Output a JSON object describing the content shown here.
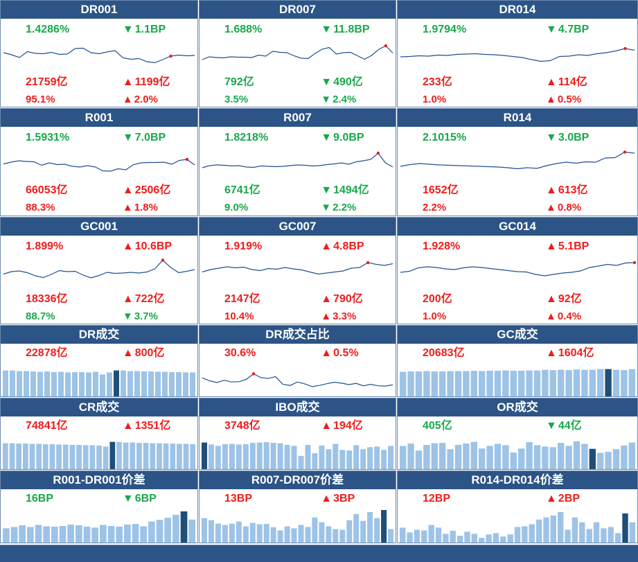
{
  "colors": {
    "header_bg": "#2c5486",
    "up": "#ef1c1c",
    "down": "#19a84a",
    "line": "#1f4f8f",
    "bar": "#9dc3e6",
    "bar_highlight": "#1f4e79",
    "marker": "#e61c1c"
  },
  "rows": [
    [
      {
        "title": "DR001",
        "type": "line",
        "stats": [
          {
            "text": "1.4286%",
            "color": "down"
          },
          {
            "arrow": "▼",
            "text": "1.1BP",
            "color": "down"
          },
          {
            "text": "21759亿",
            "color": "up"
          },
          {
            "arrow": "▲",
            "text": "1199亿",
            "color": "up"
          },
          {
            "text": "95.1%",
            "color": "up"
          },
          {
            "arrow": "▲",
            "text": "2.0%",
            "color": "up"
          }
        ],
        "chart_data": {
          "type": "line",
          "values": [
            58,
            52,
            44,
            61,
            56,
            55,
            59,
            53,
            54,
            70,
            71,
            58,
            55,
            60,
            64,
            43,
            39,
            41,
            32,
            29,
            38,
            48,
            51,
            49,
            50
          ],
          "marker_index": 21
        }
      },
      {
        "title": "DR007",
        "type": "line",
        "stats": [
          {
            "text": "1.688%",
            "color": "down"
          },
          {
            "arrow": "▼",
            "text": "11.8BP",
            "color": "down"
          },
          {
            "text": "792亿",
            "color": "down"
          },
          {
            "arrow": "▼",
            "text": "490亿",
            "color": "down"
          },
          {
            "text": "3.5%",
            "color": "down"
          },
          {
            "arrow": "▼",
            "text": "2.4%",
            "color": "down"
          }
        ],
        "chart_data": {
          "type": "line",
          "values": [
            38,
            46,
            44,
            43,
            46,
            45,
            45,
            44,
            51,
            48,
            62,
            59,
            58,
            49,
            42,
            41,
            56,
            68,
            73,
            54,
            58,
            59,
            49,
            39,
            50,
            67,
            78,
            57
          ],
          "marker_index": 26
        }
      },
      {
        "title": "DR014",
        "type": "line",
        "stats": [
          {
            "text": "1.9794%",
            "color": "down"
          },
          {
            "arrow": "▼",
            "text": "4.7BP",
            "color": "down"
          },
          {
            "text": "233亿",
            "color": "up"
          },
          {
            "arrow": "▲",
            "text": "114亿",
            "color": "up"
          },
          {
            "text": "1.0%",
            "color": "up"
          },
          {
            "arrow": "▲",
            "text": "0.5%",
            "color": "up"
          }
        ],
        "chart_data": {
          "type": "line",
          "values": [
            46,
            47,
            49,
            48,
            51,
            50,
            53,
            54,
            55,
            53,
            52,
            50,
            47,
            44,
            38,
            33,
            35,
            47,
            48,
            52,
            50,
            55,
            58,
            63,
            70,
            65
          ],
          "marker_index": 24
        }
      }
    ],
    [
      {
        "title": "R001",
        "type": "line",
        "stats": [
          {
            "text": "1.5931%",
            "color": "down"
          },
          {
            "arrow": "▼",
            "text": "7.0BP",
            "color": "down"
          },
          {
            "text": "66053亿",
            "color": "up"
          },
          {
            "arrow": "▲",
            "text": "2506亿",
            "color": "up"
          },
          {
            "text": "88.3%",
            "color": "up"
          },
          {
            "arrow": "▲",
            "text": "1.8%",
            "color": "up"
          }
        ],
        "chart_data": {
          "type": "line",
          "values": [
            49,
            54,
            58,
            56,
            55,
            45,
            52,
            47,
            48,
            42,
            40,
            44,
            40,
            29,
            28,
            35,
            32,
            47,
            52,
            53,
            53,
            54,
            48,
            59,
            62,
            46
          ],
          "marker_index": 24
        }
      },
      {
        "title": "R007",
        "type": "line",
        "stats": [
          {
            "text": "1.8218%",
            "color": "down"
          },
          {
            "arrow": "▼",
            "text": "9.0BP",
            "color": "down"
          },
          {
            "text": "6741亿",
            "color": "down"
          },
          {
            "arrow": "▼",
            "text": "1494亿",
            "color": "down"
          },
          {
            "text": "9.0%",
            "color": "down"
          },
          {
            "arrow": "▼",
            "text": "2.2%",
            "color": "down"
          }
        ],
        "chart_data": {
          "type": "line",
          "values": [
            38,
            44,
            46,
            45,
            43,
            44,
            40,
            39,
            43,
            42,
            41,
            42,
            44,
            46,
            45,
            43,
            44,
            47,
            49,
            52,
            48,
            55,
            58,
            62,
            80,
            52,
            40
          ],
          "marker_index": 24
        }
      },
      {
        "title": "R014",
        "type": "line",
        "stats": [
          {
            "text": "2.1015%",
            "color": "down"
          },
          {
            "arrow": "▼",
            "text": "3.0BP",
            "color": "down"
          },
          {
            "text": "1652亿",
            "color": "up"
          },
          {
            "arrow": "▲",
            "text": "613亿",
            "color": "up"
          },
          {
            "text": "2.2%",
            "color": "up"
          },
          {
            "arrow": "▲",
            "text": "0.8%",
            "color": "up"
          }
        ],
        "chart_data": {
          "type": "line",
          "values": [
            42,
            47,
            50,
            48,
            46,
            45,
            44,
            43,
            42,
            41,
            40,
            38,
            35,
            38,
            36,
            44,
            50,
            54,
            51,
            55,
            54,
            66,
            67,
            83,
            80
          ],
          "marker_index": 23
        }
      }
    ],
    [
      {
        "title": "GC001",
        "type": "line",
        "stats": [
          {
            "text": "1.899%",
            "color": "up"
          },
          {
            "arrow": "▲",
            "text": "10.6BP",
            "color": "up"
          },
          {
            "text": "18336亿",
            "color": "up"
          },
          {
            "arrow": "▲",
            "text": "722亿",
            "color": "up"
          },
          {
            "text": "88.7%",
            "color": "down"
          },
          {
            "arrow": "▼",
            "text": "3.7%",
            "color": "down"
          }
        ],
        "chart_data": {
          "type": "line",
          "values": [
            45,
            52,
            54,
            49,
            40,
            35,
            44,
            55,
            52,
            53,
            42,
            34,
            41,
            50,
            47,
            48,
            50,
            48,
            51,
            60,
            85,
            64,
            49,
            53,
            58
          ],
          "marker_index": 20
        }
      },
      {
        "title": "GC007",
        "type": "line",
        "stats": [
          {
            "text": "1.919%",
            "color": "up"
          },
          {
            "arrow": "▲",
            "text": "4.8BP",
            "color": "up"
          },
          {
            "text": "2147亿",
            "color": "up"
          },
          {
            "arrow": "▲",
            "text": "790亿",
            "color": "up"
          },
          {
            "text": "10.4%",
            "color": "up"
          },
          {
            "arrow": "▲",
            "text": "3.3%",
            "color": "up"
          }
        ],
        "chart_data": {
          "type": "line",
          "values": [
            51,
            58,
            62,
            66,
            63,
            65,
            58,
            55,
            61,
            59,
            64,
            60,
            57,
            51,
            45,
            48,
            51,
            54,
            62,
            64,
            78,
            73,
            70,
            75
          ],
          "marker_index": 20
        }
      },
      {
        "title": "GC014",
        "type": "line",
        "stats": [
          {
            "text": "1.928%",
            "color": "up"
          },
          {
            "arrow": "▲",
            "text": "5.1BP",
            "color": "up"
          },
          {
            "text": "200亿",
            "color": "up"
          },
          {
            "arrow": "▲",
            "text": "92亿",
            "color": "up"
          },
          {
            "text": "1.0%",
            "color": "up"
          },
          {
            "arrow": "▲",
            "text": "0.4%",
            "color": "up"
          }
        ],
        "chart_data": {
          "type": "line",
          "values": [
            50,
            53,
            63,
            66,
            64,
            60,
            58,
            63,
            66,
            64,
            61,
            58,
            55,
            52,
            51,
            44,
            40,
            44,
            48,
            50,
            54,
            64,
            68,
            73,
            70,
            77,
            78
          ],
          "marker_index": 26
        }
      }
    ],
    [
      {
        "title": "DR成交",
        "type": "bar",
        "stats": [
          {
            "text": "22878亿",
            "color": "up"
          },
          {
            "arrow": "▲",
            "text": "800亿",
            "color": "up"
          }
        ],
        "chart_data": {
          "type": "bar",
          "values": [
            78,
            78,
            76,
            76,
            75,
            74,
            75,
            73,
            74,
            72,
            73,
            73,
            72,
            74,
            66,
            72,
            78,
            78,
            76,
            76,
            75,
            75,
            74,
            74,
            73,
            73,
            72,
            72
          ],
          "highlight_index": 16
        }
      },
      {
        "title": "DR成交占比",
        "type": "line",
        "stats": [
          {
            "text": "30.6%",
            "color": "up"
          },
          {
            "arrow": "▲",
            "text": "0.5%",
            "color": "up"
          }
        ],
        "chart_data": {
          "type": "line",
          "values": [
            54,
            44,
            38,
            46,
            40,
            41,
            49,
            68,
            55,
            52,
            58,
            32,
            28,
            40,
            33,
            24,
            28,
            34,
            39,
            36,
            31,
            35,
            27,
            32,
            27,
            26,
            30
          ],
          "marker_index": 7
        }
      },
      {
        "title": "GC成交",
        "type": "bar",
        "stats": [
          {
            "text": "20683亿",
            "color": "up"
          },
          {
            "arrow": "▲",
            "text": "1604亿",
            "color": "up"
          }
        ],
        "chart_data": {
          "type": "bar",
          "values": [
            74,
            75,
            75,
            76,
            75,
            75,
            76,
            76,
            76,
            77,
            76,
            77,
            77,
            78,
            77,
            77,
            78,
            78,
            80,
            79,
            80,
            79,
            81,
            80,
            80,
            82,
            82,
            80,
            79,
            82
          ],
          "highlight_index": 26
        }
      }
    ],
    [
      {
        "title": "CR成交",
        "type": "bar",
        "stats": [
          {
            "text": "74841亿",
            "color": "up"
          },
          {
            "arrow": "▲",
            "text": "1351亿",
            "color": "up"
          }
        ],
        "chart_data": {
          "type": "bar",
          "values": [
            78,
            78,
            77,
            77,
            76,
            76,
            75,
            75,
            74,
            74,
            73,
            73,
            72,
            72,
            71,
            68,
            82,
            82,
            80,
            80,
            79,
            79,
            78,
            78,
            77,
            77,
            76,
            76,
            75
          ],
          "highlight_index": 16
        }
      },
      {
        "title": "IBO成交",
        "type": "bar",
        "stats": [
          {
            "text": "3748亿",
            "color": "up"
          },
          {
            "arrow": "▲",
            "text": "194亿",
            "color": "up"
          }
        ],
        "chart_data": {
          "type": "bar",
          "values": [
            80,
            74,
            70,
            75,
            76,
            74,
            75,
            79,
            80,
            81,
            79,
            78,
            73,
            70,
            40,
            73,
            48,
            71,
            60,
            76,
            58,
            56,
            72,
            60,
            66,
            68,
            58,
            70
          ],
          "highlight_index": 0
        }
      },
      {
        "title": "OR成交",
        "type": "bar",
        "stats": [
          {
            "text": "405亿",
            "color": "down"
          },
          {
            "arrow": "▼",
            "text": "44亿",
            "color": "down"
          }
        ],
        "chart_data": {
          "type": "bar",
          "values": [
            70,
            77,
            56,
            73,
            78,
            79,
            60,
            73,
            77,
            82,
            62,
            70,
            76,
            72,
            50,
            62,
            81,
            72,
            68,
            66,
            79,
            70,
            84,
            76,
            61,
            49,
            52,
            60,
            71,
            80
          ],
          "highlight_index": 24
        }
      }
    ],
    [
      {
        "title": "R001-DR001价差",
        "type": "bar",
        "stats": [
          {
            "text": "16BP",
            "color": "down"
          },
          {
            "arrow": "▼",
            "text": "6BP",
            "color": "down"
          }
        ],
        "chart_data": {
          "type": "bar",
          "values": [
            42,
            46,
            51,
            46,
            52,
            48,
            47,
            49,
            53,
            51,
            47,
            44,
            52,
            49,
            47,
            53,
            55,
            48,
            62,
            67,
            73,
            82,
            92,
            68
          ],
          "highlight_index": 22
        }
      },
      {
        "title": "R007-DR007价差",
        "type": "bar",
        "stats": [
          {
            "text": "13BP",
            "color": "up"
          },
          {
            "arrow": "▲",
            "text": "3BP",
            "color": "up"
          }
        ],
        "chart_data": {
          "type": "bar",
          "values": [
            72,
            66,
            56,
            52,
            56,
            62,
            48,
            58,
            54,
            55,
            45,
            36,
            48,
            42,
            52,
            46,
            74,
            60,
            48,
            40,
            38,
            66,
            84,
            64,
            90,
            72,
            96,
            40
          ],
          "highlight_index": 26
        }
      },
      {
        "title": "R014-DR014价差",
        "type": "bar",
        "stats": [
          {
            "text": "12BP",
            "color": "up"
          },
          {
            "arrow": "▲",
            "text": "2BP",
            "color": "up"
          }
        ],
        "chart_data": {
          "type": "bar",
          "values": [
            44,
            30,
            38,
            36,
            52,
            44,
            26,
            35,
            20,
            32,
            26,
            14,
            24,
            28,
            18,
            24,
            46,
            48,
            54,
            68,
            74,
            80,
            90,
            38,
            74,
            60,
            40,
            60,
            42,
            46,
            28,
            86,
            60
          ],
          "highlight_index": 31
        }
      }
    ]
  ]
}
